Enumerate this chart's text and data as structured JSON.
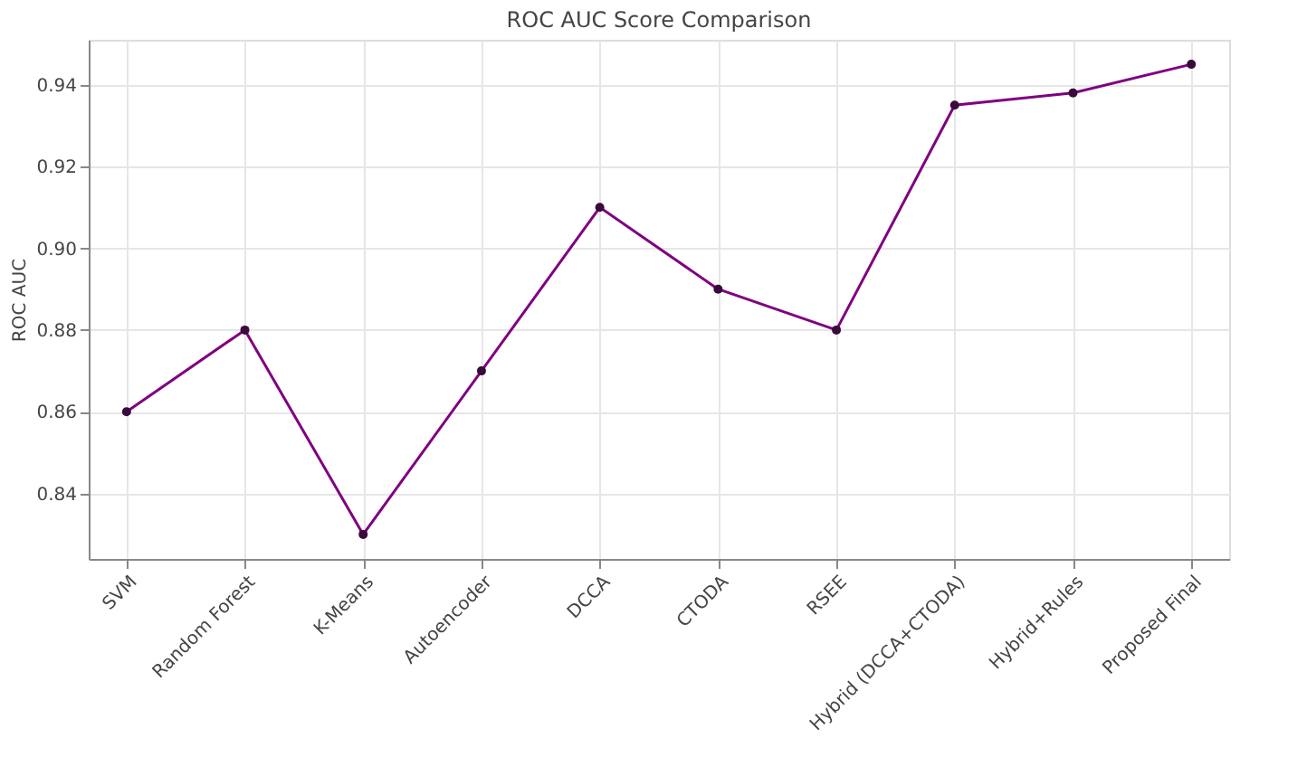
{
  "chart_data": {
    "type": "line",
    "title": "ROC AUC Score Comparison",
    "ylabel": "ROC AUC",
    "categories": [
      "SVM",
      "Random Forest",
      "K-Means",
      "Autoencoder",
      "DCCA",
      "CTODA",
      "RSEE",
      "Hybrid (DCCA+CTODA)",
      "Hybrid+Rules",
      "Proposed Final"
    ],
    "series": [
      {
        "color": "#800080",
        "values": [
          0.86,
          0.88,
          0.83,
          0.87,
          0.91,
          0.89,
          0.88,
          0.935,
          0.938,
          0.945
        ]
      }
    ],
    "ylim": [
      0.824,
      0.951
    ],
    "yticks": [
      0.84,
      0.86,
      0.88,
      {
        "value": 0.9,
        "label": "0.90"
      },
      0.92,
      0.94
    ],
    "grid": true,
    "marker": "circle",
    "line_style": "solid"
  }
}
